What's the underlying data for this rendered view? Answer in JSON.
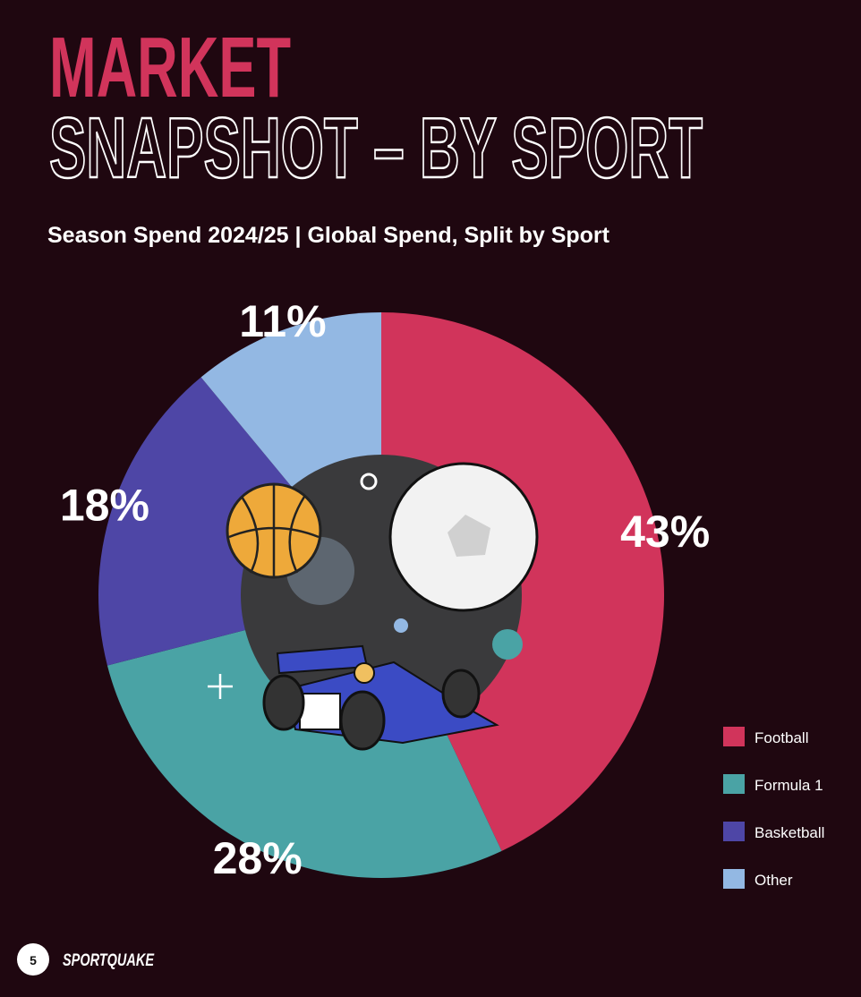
{
  "chart_data": {
    "type": "pie",
    "title_lines": [
      "MARKET",
      "SNAPSHOT – BY SPORT"
    ],
    "subtitle": "Season Spend 2024/25 | Global Spend, Split by Sport",
    "categories": [
      "Football",
      "Formula 1",
      "Basketball",
      "Other"
    ],
    "values": [
      43,
      28,
      18,
      11
    ],
    "value_labels": [
      "43%",
      "28%",
      "18%",
      "11%"
    ],
    "colors": [
      "#d1345b",
      "#4aa3a5",
      "#4e46a6",
      "#93b8e3"
    ],
    "legend": "bottom-right"
  },
  "footer": {
    "page": "5",
    "brand": "SPORTQUAKE"
  }
}
